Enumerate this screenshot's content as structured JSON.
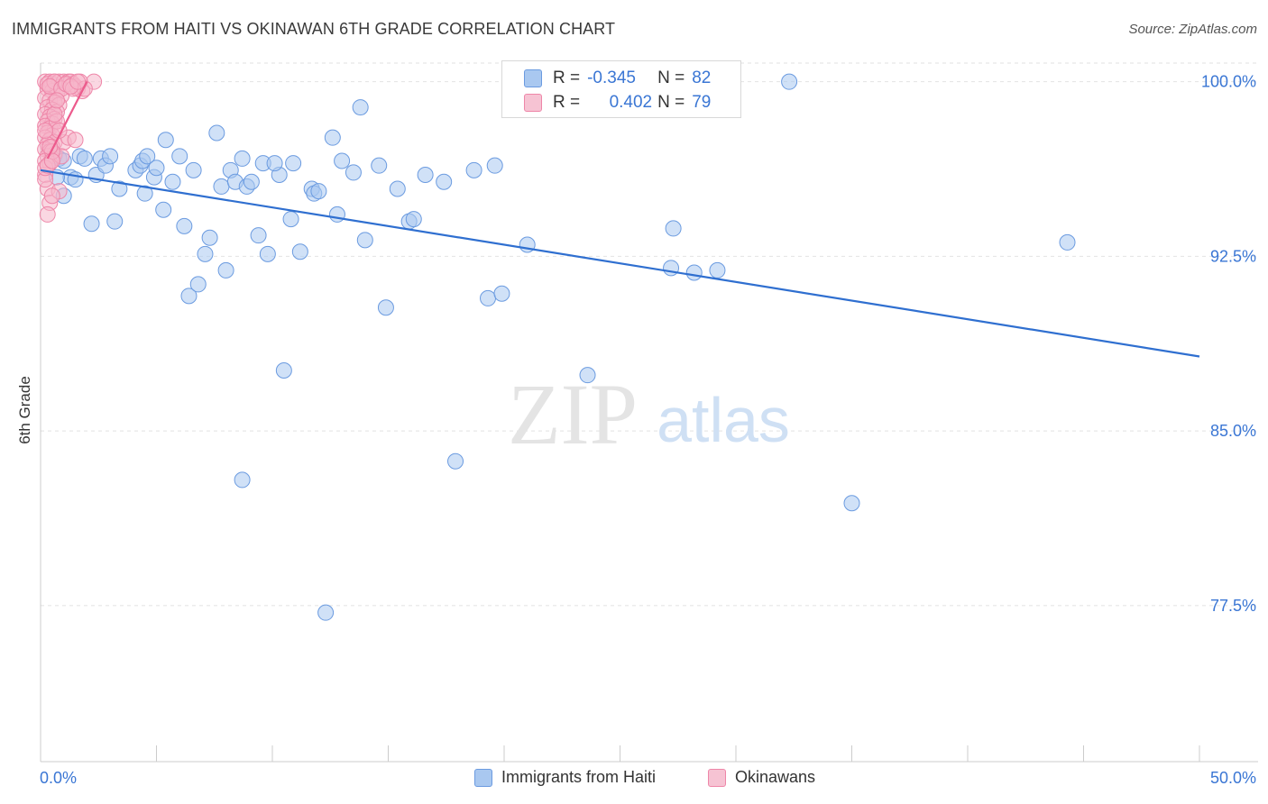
{
  "header": {
    "title": "IMMIGRANTS FROM HAITI VS OKINAWAN 6TH GRADE CORRELATION CHART",
    "source": "Source: ZipAtlas.com"
  },
  "watermark": {
    "zip": "ZIP",
    "atlas": "atlas"
  },
  "colors": {
    "blue_fill": "#a9c8f0",
    "blue_stroke": "#6b9be0",
    "blue_line": "#2f6fd0",
    "pink_fill": "#f6b6cb",
    "pink_stroke": "#ee86a8",
    "pink_line": "#ec5a8c",
    "tick_label": "#3a76d4",
    "grid": "#e2e2e2"
  },
  "stats_legend": {
    "rows": [
      {
        "r_label": "R =",
        "r_value": "-0.345",
        "n_label": "N =",
        "n_value": "82"
      },
      {
        "r_label": "R =",
        "r_value": "0.402",
        "n_label": "N =",
        "n_value": "79"
      }
    ]
  },
  "chart_data": {
    "type": "scatter",
    "title": "IMMIGRANTS FROM HAITI VS OKINAWAN 6TH GRADE CORRELATION CHART",
    "xlabel": "",
    "ylabel": "6th Grade",
    "xlim": [
      0,
      50
    ],
    "ylim": [
      70.8,
      100.8
    ],
    "x_tick_labels": [
      "0.0%",
      "50.0%"
    ],
    "y_ticks": [
      77.5,
      85.0,
      92.5,
      100.0
    ],
    "y_tick_labels": [
      "77.5%",
      "85.0%",
      "92.5%",
      "100.0%"
    ],
    "x_minor_ticks": [
      0,
      5,
      10,
      15,
      20,
      25,
      30,
      35,
      40,
      45,
      50
    ],
    "grid": true,
    "legend_position": "bottom",
    "series": [
      {
        "name": "Immigrants from Haiti",
        "color": "blue",
        "trend": {
          "x0": 0.0,
          "y0": 96.2,
          "x1": 50.0,
          "y1": 88.2
        },
        "points": [
          [
            0.6,
            96.8
          ],
          [
            0.8,
            96.7
          ],
          [
            1.0,
            95.1
          ],
          [
            1.3,
            95.9
          ],
          [
            1.5,
            95.8
          ],
          [
            1.7,
            96.8
          ],
          [
            1.9,
            96.7
          ],
          [
            2.2,
            93.9
          ],
          [
            2.4,
            96.0
          ],
          [
            2.6,
            96.7
          ],
          [
            2.8,
            96.4
          ],
          [
            3.0,
            96.8
          ],
          [
            3.2,
            94.0
          ],
          [
            3.4,
            95.4
          ],
          [
            4.1,
            96.2
          ],
          [
            4.3,
            96.4
          ],
          [
            4.4,
            96.6
          ],
          [
            4.6,
            96.8
          ],
          [
            4.5,
            95.2
          ],
          [
            4.9,
            95.9
          ],
          [
            5.0,
            96.3
          ],
          [
            5.3,
            94.5
          ],
          [
            5.4,
            97.5
          ],
          [
            5.7,
            95.7
          ],
          [
            6.0,
            96.8
          ],
          [
            6.2,
            93.8
          ],
          [
            6.4,
            90.8
          ],
          [
            6.6,
            96.2
          ],
          [
            6.8,
            91.3
          ],
          [
            7.1,
            92.6
          ],
          [
            7.3,
            93.3
          ],
          [
            7.6,
            97.8
          ],
          [
            7.8,
            95.5
          ],
          [
            8.0,
            91.9
          ],
          [
            8.2,
            96.2
          ],
          [
            8.4,
            95.7
          ],
          [
            8.7,
            96.7
          ],
          [
            8.9,
            95.5
          ],
          [
            9.1,
            95.7
          ],
          [
            9.4,
            93.4
          ],
          [
            9.6,
            96.5
          ],
          [
            9.8,
            92.6
          ],
          [
            10.3,
            96.0
          ],
          [
            10.5,
            87.6
          ],
          [
            10.8,
            94.1
          ],
          [
            10.9,
            96.5
          ],
          [
            11.2,
            92.7
          ],
          [
            11.7,
            95.4
          ],
          [
            11.8,
            95.2
          ],
          [
            12.0,
            95.3
          ],
          [
            12.3,
            77.2
          ],
          [
            12.6,
            97.6
          ],
          [
            12.8,
            94.3
          ],
          [
            13.0,
            96.6
          ],
          [
            13.5,
            96.1
          ],
          [
            13.8,
            98.9
          ],
          [
            14.0,
            93.2
          ],
          [
            14.6,
            96.4
          ],
          [
            14.9,
            90.3
          ],
          [
            15.4,
            95.4
          ],
          [
            15.9,
            94.0
          ],
          [
            16.1,
            94.1
          ],
          [
            16.6,
            96.0
          ],
          [
            17.4,
            95.7
          ],
          [
            17.9,
            83.7
          ],
          [
            18.7,
            96.2
          ],
          [
            19.3,
            90.7
          ],
          [
            19.9,
            90.9
          ],
          [
            19.6,
            96.4
          ],
          [
            21.0,
            93.0
          ],
          [
            23.6,
            87.4
          ],
          [
            27.3,
            93.7
          ],
          [
            27.2,
            92.0
          ],
          [
            28.2,
            91.8
          ],
          [
            29.2,
            91.9
          ],
          [
            32.3,
            100.0
          ],
          [
            35.0,
            81.9
          ],
          [
            44.3,
            93.1
          ],
          [
            8.7,
            82.9
          ],
          [
            10.1,
            96.5
          ],
          [
            1.0,
            96.6
          ],
          [
            0.7,
            95.9
          ]
        ]
      },
      {
        "name": "Okinawans",
        "color": "pink",
        "trend": {
          "x0": 0.3,
          "y0": 96.7,
          "x1": 2.0,
          "y1": 100.0
        },
        "points": [
          [
            0.2,
            100.0
          ],
          [
            0.4,
            100.0
          ],
          [
            0.5,
            99.9
          ],
          [
            0.6,
            100.0
          ],
          [
            0.8,
            100.0
          ],
          [
            0.9,
            99.8
          ],
          [
            1.0,
            100.0
          ],
          [
            1.1,
            99.9
          ],
          [
            1.2,
            100.0
          ],
          [
            1.3,
            100.0
          ],
          [
            1.4,
            99.9
          ],
          [
            1.5,
            99.8
          ],
          [
            1.6,
            99.7
          ],
          [
            1.8,
            99.6
          ],
          [
            0.3,
            99.7
          ],
          [
            0.5,
            99.6
          ],
          [
            0.7,
            99.5
          ],
          [
            0.9,
            99.4
          ],
          [
            0.2,
            99.3
          ],
          [
            0.4,
            99.2
          ],
          [
            0.6,
            99.1
          ],
          [
            0.8,
            99.0
          ],
          [
            0.3,
            98.9
          ],
          [
            0.5,
            98.8
          ],
          [
            0.7,
            98.7
          ],
          [
            0.2,
            98.6
          ],
          [
            0.4,
            98.5
          ],
          [
            0.6,
            98.4
          ],
          [
            0.3,
            98.3
          ],
          [
            0.5,
            98.2
          ],
          [
            0.2,
            98.1
          ],
          [
            0.4,
            98.0
          ],
          [
            0.6,
            97.9
          ],
          [
            0.3,
            97.8
          ],
          [
            0.5,
            97.7
          ],
          [
            0.2,
            97.6
          ],
          [
            0.4,
            97.5
          ],
          [
            0.6,
            97.4
          ],
          [
            0.3,
            97.3
          ],
          [
            0.5,
            97.2
          ],
          [
            0.2,
            97.1
          ],
          [
            0.4,
            97.0
          ],
          [
            0.6,
            96.9
          ],
          [
            0.3,
            96.8
          ],
          [
            0.5,
            96.7
          ],
          [
            0.2,
            96.6
          ],
          [
            0.4,
            96.5
          ],
          [
            1.0,
            97.4
          ],
          [
            1.2,
            97.6
          ],
          [
            1.5,
            97.5
          ],
          [
            0.9,
            96.8
          ],
          [
            0.2,
            96.0
          ],
          [
            0.3,
            95.4
          ],
          [
            0.4,
            94.8
          ],
          [
            0.3,
            94.3
          ],
          [
            0.8,
            95.3
          ],
          [
            2.3,
            100.0
          ],
          [
            0.2,
            95.8
          ],
          [
            0.5,
            95.1
          ],
          [
            0.3,
            99.9
          ],
          [
            0.6,
            100.0
          ],
          [
            0.4,
            99.8
          ],
          [
            1.7,
            100.0
          ],
          [
            1.9,
            99.7
          ],
          [
            0.7,
            98.3
          ],
          [
            0.8,
            97.9
          ],
          [
            0.2,
            96.3
          ],
          [
            0.5,
            97.0
          ],
          [
            0.9,
            99.7
          ],
          [
            1.1,
            99.9
          ],
          [
            1.4,
            99.7
          ],
          [
            0.6,
            98.6
          ],
          [
            0.4,
            97.2
          ],
          [
            0.3,
            96.4
          ],
          [
            0.7,
            99.2
          ],
          [
            1.3,
            99.8
          ],
          [
            1.6,
            100.0
          ],
          [
            0.2,
            97.9
          ],
          [
            0.5,
            96.6
          ]
        ]
      }
    ]
  },
  "bottom_legend": {
    "items": [
      "Immigrants from Haiti",
      "Okinawans"
    ]
  }
}
